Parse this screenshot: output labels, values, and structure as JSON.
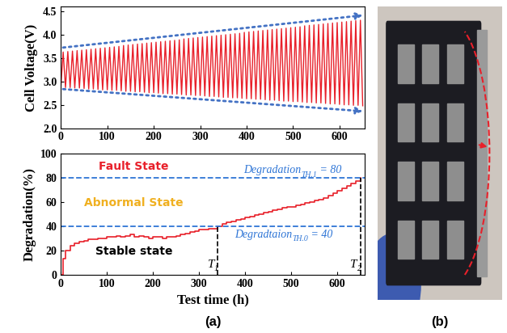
{
  "panel_labels": [
    "(a)",
    "(b)"
  ],
  "chart_data": [
    {
      "type": "line",
      "y_label": "Cell Voltage(V)",
      "color": "#e8202a",
      "x": [
        0,
        5,
        10,
        15,
        20,
        25,
        30,
        35,
        40,
        45,
        50,
        55,
        60,
        65,
        70,
        75,
        80,
        85,
        90,
        95,
        100,
        105,
        110,
        115,
        120,
        125,
        130,
        135,
        140,
        145,
        150,
        155,
        160,
        165,
        170,
        175,
        180,
        185,
        190,
        195,
        200,
        205,
        210,
        215,
        220,
        225,
        230,
        235,
        240,
        245,
        250,
        255,
        260,
        265,
        270,
        275,
        280,
        285,
        290,
        295,
        300,
        305,
        310,
        315,
        320,
        325,
        330,
        335,
        340,
        345,
        350,
        355,
        360,
        365,
        370,
        375,
        380,
        385,
        390,
        395,
        400,
        405,
        410,
        415,
        420,
        425,
        430,
        435,
        440,
        445,
        450,
        455,
        460,
        465,
        470,
        475,
        480,
        485,
        490,
        495,
        500,
        505,
        510,
        515,
        520,
        525,
        530,
        535,
        540,
        545,
        550,
        555,
        560,
        565,
        570,
        575,
        580,
        585,
        590,
        595,
        600,
        605,
        610,
        615,
        620,
        625,
        630,
        635,
        640,
        645,
        650
      ],
      "values": [
        2.88,
        3.63,
        2.87,
        3.64,
        2.87,
        3.65,
        2.86,
        3.66,
        2.86,
        3.67,
        2.85,
        3.68,
        2.84,
        3.69,
        2.84,
        3.7,
        2.83,
        3.71,
        2.82,
        3.72,
        2.82,
        3.73,
        2.81,
        3.74,
        2.81,
        3.75,
        2.8,
        3.77,
        2.79,
        3.78,
        2.79,
        3.79,
        2.78,
        3.8,
        2.78,
        3.81,
        2.77,
        3.82,
        2.76,
        3.83,
        2.76,
        3.84,
        2.75,
        3.85,
        2.74,
        3.86,
        2.74,
        3.87,
        2.73,
        3.88,
        2.73,
        3.89,
        2.72,
        3.91,
        2.71,
        3.92,
        2.71,
        3.93,
        2.7,
        3.94,
        2.7,
        3.95,
        2.69,
        3.96,
        2.68,
        3.97,
        2.68,
        3.98,
        2.67,
        3.99,
        2.66,
        4.0,
        2.66,
        4.01,
        2.65,
        4.02,
        2.65,
        4.03,
        2.64,
        4.05,
        2.63,
        4.06,
        2.63,
        4.07,
        2.62,
        4.08,
        2.62,
        4.09,
        2.61,
        4.1,
        2.6,
        4.11,
        2.6,
        4.12,
        2.59,
        4.13,
        2.58,
        4.14,
        2.58,
        4.15,
        2.57,
        4.16,
        2.57,
        4.17,
        2.56,
        4.19,
        2.55,
        4.2,
        2.55,
        4.21,
        2.54,
        4.22,
        2.54,
        4.23,
        2.53,
        4.24,
        2.52,
        4.25,
        2.52,
        4.26,
        2.51,
        4.27,
        2.5,
        4.28,
        2.5,
        4.29,
        2.49,
        4.3,
        2.49,
        4.31,
        2.48
      ],
      "xlim": [
        0,
        655
      ],
      "xticks": [
        0,
        100,
        200,
        300,
        400,
        500,
        600
      ],
      "ylim": [
        2.0,
        4.6
      ],
      "yticks": [
        {
          "value": 2,
          "label": "2.0"
        },
        2.5,
        {
          "value": 3,
          "label": "3.0"
        },
        3.5,
        {
          "value": 4,
          "label": "4.0"
        },
        4.5
      ],
      "trend_lines": [
        {
          "x": [
            0,
            655
          ],
          "values": [
            3.72,
            4.42
          ],
          "color": "#4472c4",
          "line_style": "dotted"
        },
        {
          "x": [
            0,
            655
          ],
          "values": [
            2.84,
            2.36
          ],
          "color": "#4472c4",
          "line_style": "dotted"
        }
      ]
    },
    {
      "type": "step",
      "y_label": "Degradation(%)",
      "x_label": "Test time (h)",
      "color": "#e8202a",
      "x": [
        0,
        5,
        10,
        20,
        30,
        40,
        50,
        60,
        70,
        80,
        90,
        100,
        110,
        120,
        130,
        140,
        150,
        160,
        170,
        180,
        190,
        200,
        210,
        220,
        230,
        240,
        250,
        260,
        270,
        280,
        290,
        300,
        310,
        320,
        330,
        340,
        350,
        360,
        370,
        380,
        390,
        400,
        410,
        420,
        430,
        440,
        450,
        460,
        470,
        480,
        490,
        500,
        510,
        520,
        530,
        540,
        550,
        560,
        570,
        580,
        590,
        600,
        610,
        620,
        630,
        640,
        650
      ],
      "values": [
        0,
        13,
        20,
        24,
        26,
        27,
        28,
        29,
        29,
        30,
        30,
        31,
        31,
        32,
        31,
        32,
        33,
        31,
        32,
        31,
        30,
        31,
        31,
        30,
        31,
        31,
        32,
        33,
        34,
        35,
        36,
        37,
        37,
        38,
        38,
        40,
        42,
        43,
        44,
        45,
        46,
        47,
        48,
        49,
        50,
        51,
        52,
        53,
        54,
        55,
        56,
        56,
        57,
        58,
        59,
        60,
        61,
        62,
        63,
        65,
        67,
        69,
        71,
        73,
        75,
        77,
        80
      ],
      "xlim": [
        0,
        660
      ],
      "xticks": [
        0,
        100,
        200,
        300,
        400,
        500,
        600
      ],
      "ylim": [
        0,
        100
      ],
      "yticks": [
        0,
        20,
        40,
        60,
        80,
        100
      ],
      "thresholds": [
        {
          "value": 80,
          "label": "Degradation",
          "subscript": "TH.1",
          "suffix": " = 80",
          "color": "#2e75d6",
          "line_style": "dashed"
        },
        {
          "value": 40,
          "label": "Degradtaion",
          "subscript": "TH.0",
          "suffix": " = 40",
          "color": "#2e75d6",
          "line_style": "dashed"
        }
      ],
      "markers": [
        {
          "x": 340,
          "y_end": 40,
          "label": "T",
          "subscript": "1",
          "color": "#000000",
          "line_style": "dashed"
        },
        {
          "x": 650,
          "y_end": 80,
          "label": "T",
          "subscript": "2",
          "color": "#000000",
          "line_style": "dashed"
        }
      ],
      "state_labels": [
        {
          "label": "Fault State",
          "color": "#e8202a"
        },
        {
          "label": "Abnormal State",
          "color": "#f0b020"
        },
        {
          "label": "Stable state",
          "color": "#000000"
        }
      ]
    }
  ]
}
